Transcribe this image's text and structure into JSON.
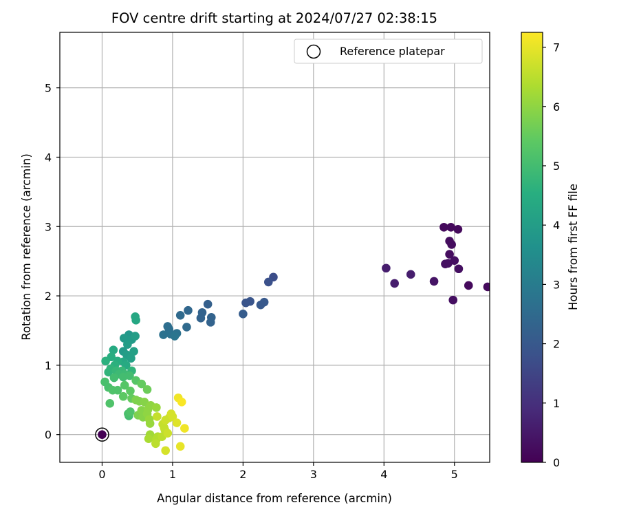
{
  "chart_data": {
    "type": "scatter",
    "title": "FOV centre drift starting at 2024/07/27 02:38:15",
    "xlabel": "Angular distance from reference (arcmin)",
    "ylabel": "Rotation from reference (arcmin)",
    "xlim": [
      -0.6,
      5.5
    ],
    "ylim": [
      -0.4,
      5.8
    ],
    "xticks": [
      0,
      1,
      2,
      3,
      4,
      5
    ],
    "yticks": [
      0,
      1,
      2,
      3,
      4,
      5
    ],
    "grid": true,
    "legend": {
      "position": "top-right",
      "entries": [
        "Reference platepar"
      ]
    },
    "colorbar": {
      "label": "Hours from first FF file",
      "range": [
        0,
        7.25
      ],
      "ticks": [
        0,
        1,
        2,
        3,
        4,
        5,
        6,
        7
      ],
      "colormap": "viridis"
    },
    "reference_point": {
      "x": 0,
      "y": 0
    },
    "series": [
      {
        "points": [
          {
            "x": 4.85,
            "y": 2.99,
            "c": 0.2
          },
          {
            "x": 4.95,
            "y": 2.99,
            "c": 0.2
          },
          {
            "x": 5.05,
            "y": 2.96,
            "c": 0.2
          },
          {
            "x": 4.93,
            "y": 2.79,
            "c": 0.25
          },
          {
            "x": 4.96,
            "y": 2.74,
            "c": 0.25
          },
          {
            "x": 4.93,
            "y": 2.6,
            "c": 0.25
          },
          {
            "x": 5.0,
            "y": 2.51,
            "c": 0.3
          },
          {
            "x": 4.87,
            "y": 2.46,
            "c": 0.3
          },
          {
            "x": 4.91,
            "y": 2.47,
            "c": 0.3
          },
          {
            "x": 5.06,
            "y": 2.39,
            "c": 0.3
          },
          {
            "x": 4.03,
            "y": 2.4,
            "c": 0.6
          },
          {
            "x": 4.15,
            "y": 2.18,
            "c": 0.6
          },
          {
            "x": 4.38,
            "y": 2.31,
            "c": 0.6
          },
          {
            "x": 4.71,
            "y": 2.21,
            "c": 0.4
          },
          {
            "x": 5.2,
            "y": 2.15,
            "c": 0.2
          },
          {
            "x": 5.47,
            "y": 2.13,
            "c": 0.2
          },
          {
            "x": 4.98,
            "y": 1.94,
            "c": 0.3
          },
          {
            "x": 2.43,
            "y": 2.27,
            "c": 1.7
          },
          {
            "x": 2.36,
            "y": 2.2,
            "c": 1.8
          },
          {
            "x": 2.1,
            "y": 1.92,
            "c": 1.9
          },
          {
            "x": 2.04,
            "y": 1.9,
            "c": 1.9
          },
          {
            "x": 2.3,
            "y": 1.91,
            "c": 2.0
          },
          {
            "x": 2.25,
            "y": 1.87,
            "c": 2.0
          },
          {
            "x": 2.0,
            "y": 1.74,
            "c": 2.1
          },
          {
            "x": 1.5,
            "y": 1.88,
            "c": 2.2
          },
          {
            "x": 1.42,
            "y": 1.76,
            "c": 2.3
          },
          {
            "x": 1.4,
            "y": 1.68,
            "c": 2.3
          },
          {
            "x": 1.55,
            "y": 1.69,
            "c": 2.3
          },
          {
            "x": 1.54,
            "y": 1.62,
            "c": 2.3
          },
          {
            "x": 1.22,
            "y": 1.79,
            "c": 2.4
          },
          {
            "x": 1.11,
            "y": 1.72,
            "c": 2.5
          },
          {
            "x": 1.2,
            "y": 1.55,
            "c": 2.5
          },
          {
            "x": 0.93,
            "y": 1.56,
            "c": 2.6
          },
          {
            "x": 0.95,
            "y": 1.52,
            "c": 2.6
          },
          {
            "x": 0.87,
            "y": 1.44,
            "c": 2.7
          },
          {
            "x": 0.97,
            "y": 1.45,
            "c": 2.7
          },
          {
            "x": 1.06,
            "y": 1.46,
            "c": 2.7
          },
          {
            "x": 1.03,
            "y": 1.42,
            "c": 2.8
          },
          {
            "x": 0.47,
            "y": 1.7,
            "c": 4.3
          },
          {
            "x": 0.48,
            "y": 1.65,
            "c": 4.3
          },
          {
            "x": 0.47,
            "y": 1.42,
            "c": 4.0
          },
          {
            "x": 0.38,
            "y": 1.44,
            "c": 3.8
          },
          {
            "x": 0.31,
            "y": 1.39,
            "c": 3.9
          },
          {
            "x": 0.42,
            "y": 1.37,
            "c": 3.9
          },
          {
            "x": 0.36,
            "y": 1.3,
            "c": 4.0
          },
          {
            "x": 0.45,
            "y": 1.2,
            "c": 4.1
          },
          {
            "x": 0.3,
            "y": 1.2,
            "c": 3.9
          },
          {
            "x": 0.35,
            "y": 1.15,
            "c": 4.0
          },
          {
            "x": 0.41,
            "y": 1.1,
            "c": 4.1
          },
          {
            "x": 0.16,
            "y": 1.22,
            "c": 4.4
          },
          {
            "x": 0.13,
            "y": 1.12,
            "c": 4.5
          },
          {
            "x": 0.05,
            "y": 1.06,
            "c": 4.6
          },
          {
            "x": 0.22,
            "y": 1.06,
            "c": 4.5
          },
          {
            "x": 0.3,
            "y": 1.05,
            "c": 4.3
          },
          {
            "x": 0.34,
            "y": 1.0,
            "c": 4.4
          },
          {
            "x": 0.18,
            "y": 1.0,
            "c": 4.6
          },
          {
            "x": 0.12,
            "y": 0.95,
            "c": 4.7
          },
          {
            "x": 0.09,
            "y": 0.9,
            "c": 4.7
          },
          {
            "x": 0.2,
            "y": 0.92,
            "c": 4.8
          },
          {
            "x": 0.28,
            "y": 0.92,
            "c": 4.8
          },
          {
            "x": 0.24,
            "y": 0.87,
            "c": 4.9
          },
          {
            "x": 0.32,
            "y": 0.87,
            "c": 4.9
          },
          {
            "x": 0.42,
            "y": 0.92,
            "c": 4.7
          },
          {
            "x": 0.17,
            "y": 0.82,
            "c": 5.0
          },
          {
            "x": 0.3,
            "y": 0.83,
            "c": 5.0
          },
          {
            "x": 0.39,
            "y": 0.85,
            "c": 5.0
          },
          {
            "x": 0.04,
            "y": 0.76,
            "c": 5.1
          },
          {
            "x": 0.48,
            "y": 0.78,
            "c": 5.3
          },
          {
            "x": 0.56,
            "y": 0.73,
            "c": 5.5
          },
          {
            "x": 0.09,
            "y": 0.68,
            "c": 5.1
          },
          {
            "x": 0.15,
            "y": 0.64,
            "c": 5.2
          },
          {
            "x": 0.22,
            "y": 0.64,
            "c": 5.2
          },
          {
            "x": 0.32,
            "y": 0.71,
            "c": 5.3
          },
          {
            "x": 0.4,
            "y": 0.63,
            "c": 5.4
          },
          {
            "x": 0.3,
            "y": 0.55,
            "c": 5.4
          },
          {
            "x": 0.42,
            "y": 0.52,
            "c": 5.5
          },
          {
            "x": 0.11,
            "y": 0.45,
            "c": 5.2
          },
          {
            "x": 0.64,
            "y": 0.65,
            "c": 5.6
          },
          {
            "x": 0.37,
            "y": 0.3,
            "c": 5.1
          },
          {
            "x": 0.4,
            "y": 0.33,
            "c": 5.2
          },
          {
            "x": 0.38,
            "y": 0.27,
            "c": 5.0
          },
          {
            "x": 0.48,
            "y": 0.5,
            "c": 5.8
          },
          {
            "x": 0.53,
            "y": 0.48,
            "c": 5.8
          },
          {
            "x": 0.6,
            "y": 0.47,
            "c": 5.9
          },
          {
            "x": 0.56,
            "y": 0.35,
            "c": 5.9
          },
          {
            "x": 0.65,
            "y": 0.36,
            "c": 6.0
          },
          {
            "x": 0.69,
            "y": 0.42,
            "c": 6.0
          },
          {
            "x": 0.51,
            "y": 0.28,
            "c": 5.8
          },
          {
            "x": 0.58,
            "y": 0.25,
            "c": 5.9
          },
          {
            "x": 0.64,
            "y": 0.3,
            "c": 6.0
          },
          {
            "x": 0.67,
            "y": 0.22,
            "c": 6.1
          },
          {
            "x": 0.68,
            "y": 0.16,
            "c": 6.1
          },
          {
            "x": 0.77,
            "y": 0.39,
            "c": 6.1
          },
          {
            "x": 0.68,
            "y": 0.0,
            "c": 6.2
          },
          {
            "x": 0.66,
            "y": -0.06,
            "c": 6.3
          },
          {
            "x": 0.79,
            "y": -0.03,
            "c": 6.4
          },
          {
            "x": 0.77,
            "y": -0.07,
            "c": 6.4
          },
          {
            "x": 0.76,
            "y": -0.13,
            "c": 6.5
          },
          {
            "x": 0.85,
            "y": -0.03,
            "c": 6.5
          },
          {
            "x": 0.89,
            "y": 0.07,
            "c": 6.5
          },
          {
            "x": 0.78,
            "y": 0.26,
            "c": 6.6
          },
          {
            "x": 0.86,
            "y": 0.15,
            "c": 6.6
          },
          {
            "x": 0.88,
            "y": 0.1,
            "c": 6.6
          },
          {
            "x": 0.9,
            "y": 0.21,
            "c": 6.7
          },
          {
            "x": 0.95,
            "y": 0.24,
            "c": 6.7
          },
          {
            "x": 0.98,
            "y": 0.3,
            "c": 6.8
          },
          {
            "x": 1.0,
            "y": 0.26,
            "c": 6.8
          },
          {
            "x": 0.93,
            "y": 0.02,
            "c": 6.7
          },
          {
            "x": 0.9,
            "y": -0.23,
            "c": 6.8
          },
          {
            "x": 1.06,
            "y": 0.17,
            "c": 6.9
          },
          {
            "x": 1.08,
            "y": 0.53,
            "c": 7.1
          },
          {
            "x": 1.13,
            "y": 0.47,
            "c": 7.2
          },
          {
            "x": 1.17,
            "y": 0.09,
            "c": 7.1
          },
          {
            "x": 1.11,
            "y": -0.17,
            "c": 7.0
          },
          {
            "x": 0.0,
            "y": 0.0,
            "c": 0.0
          }
        ]
      }
    ]
  }
}
